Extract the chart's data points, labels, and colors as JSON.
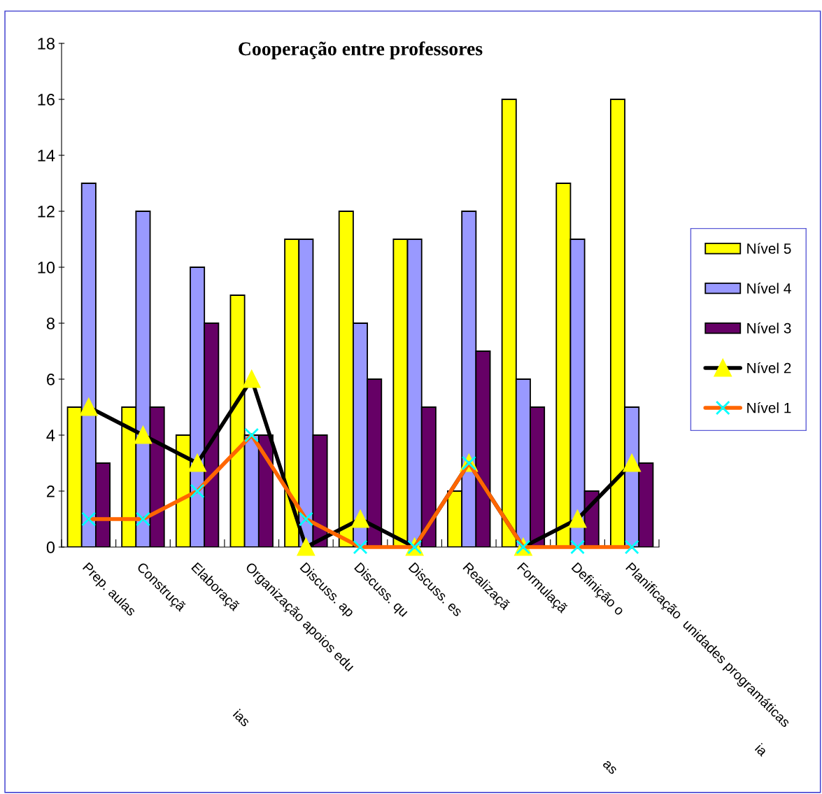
{
  "chart_data": {
    "type": "bar",
    "title": "Cooperação entre professores",
    "categories": [
      "Prep. aulas",
      "Construçã",
      "Elaboraçã",
      "Organização apoios edu",
      "Discuss. ap",
      "Discuss. qu",
      "Discuss. es",
      "Realizaçã",
      "Formulaçã",
      "Definição o",
      "Planificação  unidades programáticas"
    ],
    "series": [
      {
        "name": "Nível 5",
        "color": "#ffff00",
        "values": [
          5,
          5,
          4,
          9,
          11,
          12,
          11,
          2,
          16,
          13,
          16
        ]
      },
      {
        "name": "Nível 4",
        "color": "#9999ff",
        "values": [
          13,
          12,
          10,
          4,
          11,
          8,
          11,
          12,
          6,
          11,
          5
        ]
      },
      {
        "name": "Nível 3",
        "color": "#660066",
        "values": [
          3,
          5,
          8,
          4,
          4,
          6,
          5,
          7,
          5,
          2,
          3
        ]
      },
      {
        "name": "Nível 2",
        "type": "line",
        "color": "#000000",
        "marker": "triangle",
        "values": [
          5,
          4,
          3,
          6,
          0,
          1,
          0,
          3,
          0,
          1,
          3
        ]
      },
      {
        "name": "Nível 1",
        "type": "line",
        "color": "#ff6600",
        "marker": "cross",
        "values": [
          1,
          1,
          2,
          4,
          1,
          0,
          0,
          3,
          0,
          0,
          0
        ]
      }
    ],
    "annotations": [
      "ias",
      "as",
      "ia"
    ],
    "ylim": [
      0,
      18
    ],
    "yticks": [
      0,
      2,
      4,
      6,
      8,
      10,
      12,
      14,
      16,
      18
    ],
    "grid": false,
    "legend": "right"
  }
}
